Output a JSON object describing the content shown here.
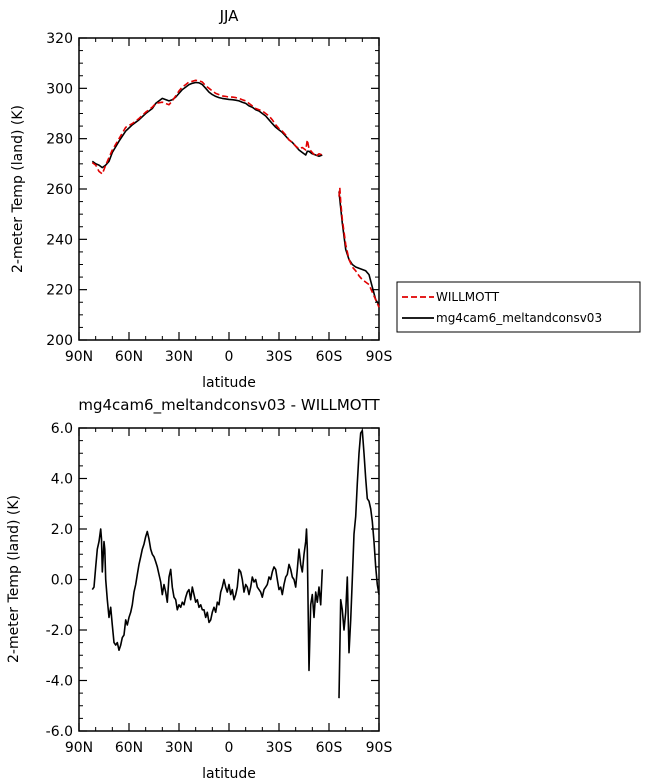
{
  "chart_data": [
    {
      "type": "line",
      "title": "JJA",
      "xlabel": "latitude",
      "ylabel": "2-meter Temp (land) (K)",
      "xticks": [
        "90N",
        "60N",
        "30N",
        "0",
        "30S",
        "60S",
        "90S"
      ],
      "yticks": [
        "200",
        "220",
        "240",
        "260",
        "280",
        "300",
        "320"
      ],
      "xlim": [
        90,
        -90
      ],
      "ylim": [
        200,
        320
      ],
      "legend_position": "right",
      "series": [
        {
          "name": "WILLMOTT",
          "color": "#e00000",
          "style": "dashed",
          "x": [
            82,
            80,
            78,
            76,
            74,
            72,
            70,
            66,
            62,
            58,
            54,
            50,
            46,
            44,
            40,
            36,
            34,
            32,
            30,
            28,
            26,
            24,
            22,
            20,
            18,
            16,
            14,
            12,
            10,
            8,
            6,
            4,
            2,
            0,
            -2,
            -4,
            -6,
            -8,
            -10,
            -12,
            -14,
            -16,
            -18,
            -20,
            -22,
            -24,
            -26,
            -28,
            -30,
            -32,
            -34,
            -36,
            -38,
            -40,
            -42,
            -44,
            -46,
            -47,
            -48,
            -50,
            -52,
            -54,
            -56
          ],
          "y": [
            270.5,
            269.5,
            267.0,
            266.0,
            269.5,
            272.5,
            275.5,
            280.0,
            284.5,
            286.0,
            288.0,
            290.5,
            292.5,
            294.0,
            294.5,
            293.5,
            295.0,
            297.0,
            299.0,
            300.5,
            301.5,
            302.5,
            302.8,
            303.2,
            303.0,
            302.5,
            301.0,
            300.0,
            299.0,
            298.0,
            297.5,
            297.0,
            296.8,
            296.5,
            296.5,
            296.3,
            296.0,
            295.5,
            295.0,
            294.0,
            293.0,
            292.0,
            291.5,
            291.0,
            290.0,
            289.0,
            287.5,
            285.5,
            284.0,
            283.0,
            281.5,
            279.5,
            278.5,
            277.0,
            276.0,
            276.5,
            275.5,
            279.5,
            276.0,
            274.5,
            273.0,
            274.0,
            273.5
          ]
        },
        {
          "name": "mg4cam6_meltandconsv03",
          "color": "#000000",
          "style": "solid",
          "x": [
            82,
            80,
            78,
            76,
            74,
            72,
            70,
            66,
            62,
            58,
            54,
            50,
            46,
            44,
            40,
            36,
            34,
            32,
            30,
            28,
            26,
            24,
            22,
            20,
            18,
            16,
            14,
            12,
            10,
            8,
            6,
            4,
            2,
            0,
            -2,
            -4,
            -6,
            -8,
            -10,
            -12,
            -14,
            -16,
            -18,
            -20,
            -22,
            -24,
            -26,
            -28,
            -30,
            -32,
            -34,
            -36,
            -38,
            -40,
            -42,
            -44,
            -46,
            -47,
            -48,
            -50,
            -52,
            -54,
            -56
          ],
          "y": [
            271.0,
            270.0,
            269.5,
            268.5,
            269.5,
            271.0,
            274.5,
            279.0,
            283.0,
            285.5,
            287.5,
            290.0,
            292.0,
            294.0,
            296.0,
            295.0,
            295.5,
            296.5,
            298.0,
            299.5,
            300.5,
            301.5,
            302.0,
            302.3,
            302.2,
            301.5,
            300.0,
            298.5,
            297.5,
            296.8,
            296.3,
            296.0,
            295.8,
            295.6,
            295.5,
            295.3,
            295.0,
            294.5,
            294.0,
            293.0,
            292.5,
            291.5,
            291.0,
            290.0,
            289.0,
            287.5,
            286.0,
            284.5,
            283.5,
            282.5,
            281.0,
            279.5,
            278.5,
            277.0,
            275.5,
            274.5,
            273.5,
            275.0,
            275.0,
            274.0,
            273.5,
            273.0,
            273.5
          ]
        },
        {
          "name": "WILLMOTT",
          "color": "#e00000",
          "style": "dashed",
          "x": [
            -66,
            -66.5,
            -67,
            -68,
            -70,
            -72,
            -74,
            -76,
            -78,
            -80,
            -82,
            -84,
            -86,
            -88,
            -90
          ],
          "y": [
            257.0,
            260.5,
            255.0,
            248.0,
            238.0,
            232.0,
            229.0,
            227.5,
            225.5,
            224.0,
            223.0,
            222.0,
            219.0,
            216.0,
            213.0
          ]
        },
        {
          "name": "mg4cam6_meltandconsv03",
          "color": "#000000",
          "style": "solid",
          "x": [
            -66,
            -67,
            -68,
            -70,
            -72,
            -74,
            -76,
            -78,
            -80,
            -82,
            -84,
            -86,
            -88,
            -90
          ],
          "y": [
            259.0,
            252.5,
            246.5,
            236.0,
            232.0,
            230.0,
            229.0,
            228.5,
            228.0,
            227.5,
            226.0,
            221.0,
            216.0,
            214.0
          ]
        }
      ]
    },
    {
      "type": "line",
      "title": "mg4cam6_meltandconsv03 - WILLMOTT",
      "xlabel": "latitude",
      "ylabel": "2-meter Temp (land) (K)",
      "xticks": [
        "90N",
        "60N",
        "30N",
        "0",
        "30S",
        "60S",
        "90S"
      ],
      "yticks": [
        "-6.0",
        "-4.0",
        "-2.0",
        "0.0",
        "2.0",
        "4.0",
        "6.0"
      ],
      "xlim": [
        90,
        -90
      ],
      "ylim": [
        -6,
        6
      ],
      "series": [
        {
          "color": "#000000",
          "style": "solid",
          "x": [
            82,
            81,
            80,
            79,
            78,
            77,
            76.5,
            76,
            75,
            74.5,
            74,
            73,
            72,
            71,
            70,
            69,
            68,
            67,
            66,
            65,
            64,
            63,
            62,
            61,
            60,
            59,
            58,
            57,
            56,
            55,
            54,
            53,
            52,
            51,
            50,
            49,
            48,
            47,
            46,
            45,
            44,
            43,
            42,
            41,
            40,
            39,
            38,
            37,
            36,
            35,
            34,
            33,
            32,
            31,
            30,
            29,
            28,
            27,
            26,
            25,
            24,
            23,
            22,
            21,
            20,
            19,
            18,
            17,
            16,
            15,
            14,
            13,
            12,
            11,
            10,
            9,
            8,
            7,
            6,
            5,
            4,
            3,
            2,
            1,
            0,
            -1,
            -2,
            -3,
            -4,
            -5,
            -6,
            -7,
            -8,
            -9,
            -10,
            -11,
            -12,
            -13,
            -14,
            -15,
            -16,
            -17,
            -18,
            -19,
            -20,
            -21,
            -22,
            -23,
            -24,
            -25,
            -26,
            -27,
            -28,
            -29,
            -30,
            -31,
            -32,
            -33,
            -34,
            -35,
            -36,
            -37,
            -38,
            -39,
            -40,
            -41,
            -42,
            -43,
            -44,
            -45,
            -46,
            -46.5,
            -47,
            -48,
            -49,
            -50,
            -51,
            -52,
            -53,
            -54,
            -55,
            -56
          ],
          "y": [
            -0.4,
            -0.3,
            0.5,
            1.2,
            1.5,
            2.0,
            1.6,
            0.3,
            1.5,
            1.2,
            0.0,
            -0.8,
            -1.5,
            -1.1,
            -1.8,
            -2.5,
            -2.6,
            -2.5,
            -2.8,
            -2.6,
            -2.3,
            -2.2,
            -1.6,
            -1.8,
            -1.5,
            -1.3,
            -1.0,
            -0.5,
            -0.2,
            0.2,
            0.6,
            0.9,
            1.2,
            1.4,
            1.7,
            1.9,
            1.6,
            1.2,
            1.0,
            0.9,
            0.7,
            0.5,
            0.2,
            -0.1,
            -0.6,
            -0.2,
            -0.5,
            -0.9,
            0.1,
            0.4,
            -0.3,
            -0.7,
            -0.8,
            -1.2,
            -1.0,
            -1.1,
            -0.9,
            -1.0,
            -0.7,
            -0.5,
            -0.4,
            -0.8,
            -0.3,
            -0.6,
            -0.9,
            -0.8,
            -1.1,
            -1.0,
            -1.2,
            -1.2,
            -1.5,
            -1.3,
            -1.7,
            -1.6,
            -1.3,
            -1.1,
            -1.3,
            -0.9,
            -1.0,
            -0.5,
            -0.3,
            0.0,
            -0.3,
            -0.5,
            -0.2,
            -0.6,
            -0.4,
            -0.8,
            -0.6,
            -0.3,
            0.4,
            0.3,
            0.0,
            -0.5,
            -0.2,
            -0.3,
            -0.6,
            -0.3,
            0.1,
            -0.1,
            0.0,
            -0.3,
            -0.4,
            -0.5,
            -0.7,
            -0.4,
            -0.3,
            -0.2,
            0.1,
            0.0,
            0.3,
            0.5,
            0.4,
            0.0,
            -0.4,
            -0.3,
            -0.6,
            -0.2,
            0.1,
            0.2,
            0.6,
            0.4,
            0.1,
            0.0,
            -0.3,
            0.4,
            1.2,
            0.6,
            0.3,
            1.0,
            1.5,
            2.0,
            1.2,
            -3.6,
            -1.0,
            -0.6,
            -1.5,
            -0.5,
            -0.9,
            -0.3,
            -1.0,
            0.4
          ]
        },
        {
          "color": "#000000",
          "style": "solid",
          "x": [
            -66,
            -67,
            -68,
            -69,
            -70,
            -71,
            -72,
            -73,
            -74,
            -75,
            -76,
            -77,
            -78,
            -79,
            -80,
            -81,
            -82,
            -83,
            -84,
            -85,
            -86,
            -87,
            -88,
            -89,
            -90
          ],
          "y": [
            -4.7,
            -0.8,
            -1.2,
            -2.0,
            -1.3,
            0.1,
            -2.9,
            -1.6,
            0.0,
            1.8,
            2.5,
            3.8,
            5.0,
            5.8,
            5.9,
            5.0,
            4.0,
            3.2,
            3.1,
            2.8,
            2.3,
            1.5,
            0.5,
            -0.2,
            -0.6
          ]
        }
      ]
    }
  ]
}
